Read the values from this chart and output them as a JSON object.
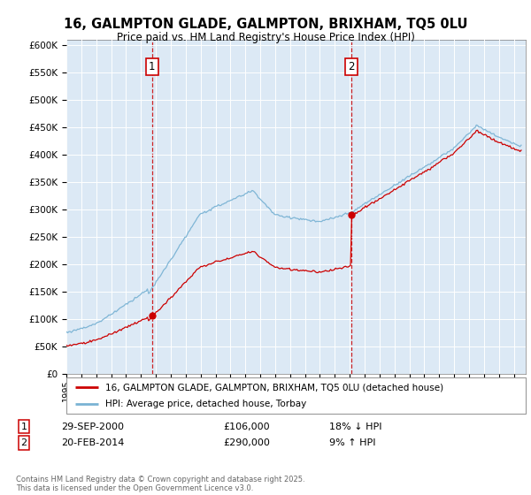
{
  "title": "16, GALMPTON GLADE, GALMPTON, BRIXHAM, TQ5 0LU",
  "subtitle": "Price paid vs. HM Land Registry's House Price Index (HPI)",
  "background_color": "#dce9f5",
  "sale1_x": 2000.75,
  "sale1_price": 106000,
  "sale2_x": 2014.12,
  "sale2_price": 290000,
  "legend_house": "16, GALMPTON GLADE, GALMPTON, BRIXHAM, TQ5 0LU (detached house)",
  "legend_hpi": "HPI: Average price, detached house, Torbay",
  "hpi_color": "#7ab3d4",
  "price_color": "#cc0000",
  "vline_color": "#cc0000",
  "footnote": "Contains HM Land Registry data © Crown copyright and database right 2025.\nThis data is licensed under the Open Government Licence v3.0."
}
